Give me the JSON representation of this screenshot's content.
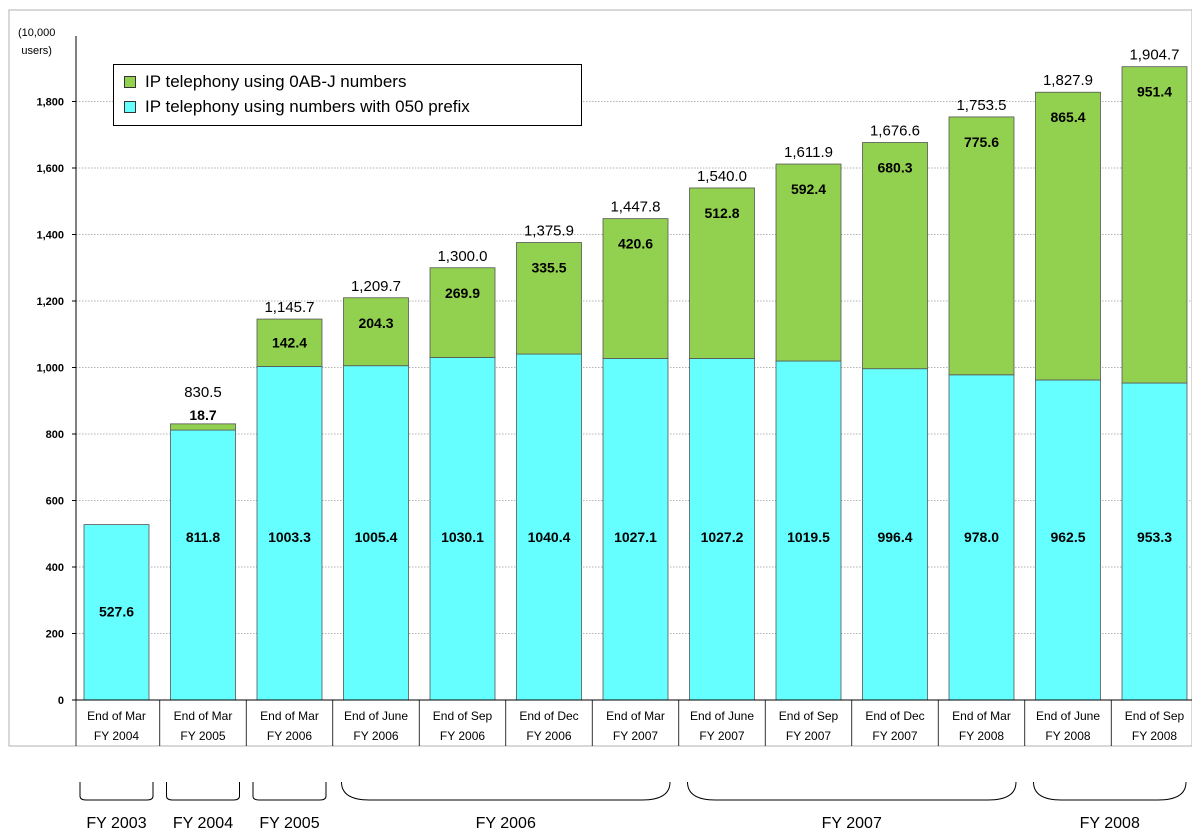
{
  "chart_data": {
    "type": "bar",
    "stacked": true,
    "y_unit_label_1": "(10,000",
    "y_unit_label_2": "users)",
    "ylim": [
      0,
      1900
    ],
    "yticks": [
      "0",
      "200",
      "400",
      "600",
      "800",
      "1,000",
      "1,200",
      "1,400",
      "1,600",
      "1,800"
    ],
    "categories": [
      {
        "line1": "End of Mar",
        "line2": "FY 2004"
      },
      {
        "line1": "End of Mar",
        "line2": "FY 2005"
      },
      {
        "line1": "End of Mar",
        "line2": "FY 2006"
      },
      {
        "line1": "End of June",
        "line2": "FY 2006"
      },
      {
        "line1": "End of Sep",
        "line2": "FY 2006"
      },
      {
        "line1": "End of Dec",
        "line2": "FY 2006"
      },
      {
        "line1": "End of Mar",
        "line2": "FY 2007"
      },
      {
        "line1": "End of June",
        "line2": "FY 2007"
      },
      {
        "line1": "End of Sep",
        "line2": "FY 2007"
      },
      {
        "line1": "End of Dec",
        "line2": "FY 2007"
      },
      {
        "line1": "End of Mar",
        "line2": "FY 2008"
      },
      {
        "line1": "End of June",
        "line2": "FY 2008"
      },
      {
        "line1": "End of Sep",
        "line2": "FY 2008"
      }
    ],
    "series": [
      {
        "name": "IP telephony using numbers with 050 prefix",
        "color": "#66ffff",
        "values": [
          527.6,
          811.8,
          1003.3,
          1005.4,
          1030.1,
          1040.4,
          1027.1,
          1027.2,
          1019.5,
          996.4,
          978.0,
          962.5,
          953.3
        ],
        "labels": [
          "527.6",
          "811.8",
          "1003.3",
          "1005.4",
          "1030.1",
          "1040.4",
          "1027.1",
          "1027.2",
          "1019.5",
          "996.4",
          "978.0",
          "962.5",
          "953.3"
        ]
      },
      {
        "name": "IP telephony using 0AB-J numbers",
        "color": "#92d050",
        "values": [
          null,
          18.7,
          142.4,
          204.3,
          269.9,
          335.5,
          420.6,
          512.8,
          592.4,
          680.3,
          775.6,
          865.4,
          951.4
        ],
        "labels": [
          "",
          "18.7",
          "142.4",
          "204.3",
          "269.9",
          "335.5",
          "420.6",
          "512.8",
          "592.4",
          "680.3",
          "775.6",
          "865.4",
          "951.4"
        ]
      }
    ],
    "totals": [
      "",
      "830.5",
      "1,145.7",
      "1,209.7",
      "1,300.0",
      "1,375.9",
      "1,447.8",
      "1,540.0",
      "1,611.9",
      "1,676.6",
      "1,753.5",
      "1,827.9",
      "1,904.7"
    ],
    "legend": [
      {
        "label": "IP telephony using 0AB-J numbers",
        "color": "#92d050"
      },
      {
        "label": "IP telephony using numbers with 050 prefix",
        "color": "#66ffff"
      }
    ],
    "fiscal_year_groups": [
      {
        "label": "FY 2003",
        "from": 0,
        "to": 0
      },
      {
        "label": "FY 2004",
        "from": 1,
        "to": 1
      },
      {
        "label": "FY 2005",
        "from": 2,
        "to": 2
      },
      {
        "label": "FY 2006",
        "from": 3,
        "to": 6
      },
      {
        "label": "FY 2007",
        "from": 7,
        "to": 10
      },
      {
        "label": "FY 2008",
        "from": 11,
        "to": 12
      }
    ]
  }
}
